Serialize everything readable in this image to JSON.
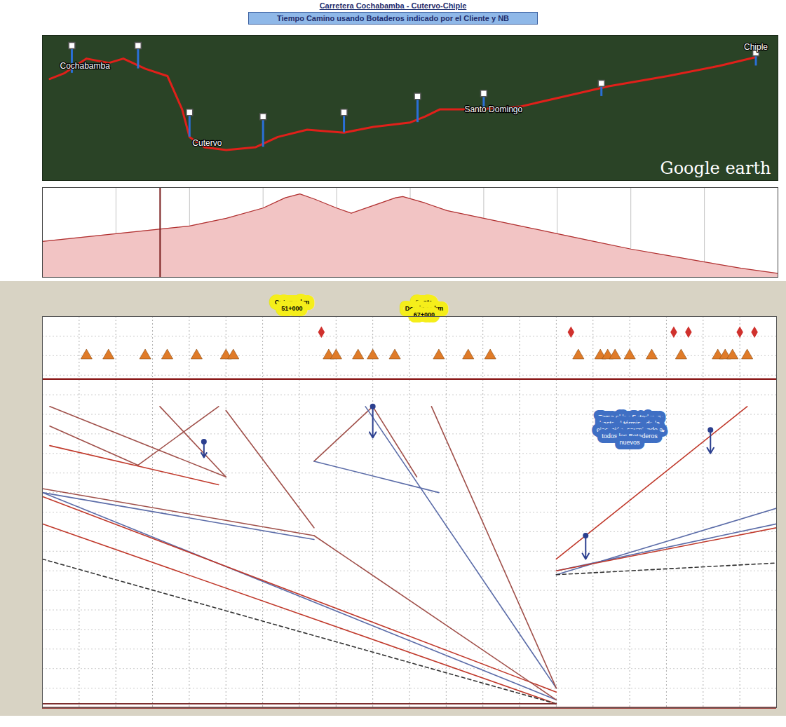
{
  "chart_data": [
    {
      "type": "map",
      "title": "Carretera Cochabamba - Cutervo-Chiple",
      "subtitle": "Tiempo Camino usando Botaderos indicado por el Cliente y NB",
      "xlim": [
        0,
        100
      ],
      "ylim": [
        0,
        100
      ],
      "tick_labels": false,
      "color": "#e0201a",
      "route": {
        "x": [
          1,
          3,
          6,
          9,
          11,
          14,
          17,
          19,
          20,
          22,
          25,
          29,
          32,
          36,
          41,
          45,
          50,
          52,
          54,
          59,
          65,
          71,
          77,
          85,
          92,
          97
        ],
        "y": [
          70,
          74,
          84,
          81,
          84,
          77,
          72,
          49,
          30,
          23,
          21,
          23,
          30,
          35,
          33,
          37,
          40,
          44,
          49,
          49,
          51,
          58,
          65,
          72,
          79,
          85
        ]
      },
      "pins": {
        "color": "#2a6fd6",
        "x": [
          4,
          13,
          20,
          30,
          41,
          51,
          60,
          76,
          97
        ],
        "y_base": [
          74,
          77,
          30,
          23,
          33,
          40,
          49,
          58,
          79
        ],
        "y_top": [
          93,
          93,
          47,
          44,
          47,
          58,
          60,
          67,
          88
        ]
      },
      "places": [
        {
          "label": "Cochabamba",
          "x": 2,
          "y": 79
        },
        {
          "label": "Cutervo",
          "x": 20,
          "y": 26
        },
        {
          "label": "Santo Domingo",
          "x": 57,
          "y": 49
        },
        {
          "label": "Chiple",
          "x": 99,
          "y": 92
        }
      ],
      "credit": "Google earth"
    },
    {
      "type": "area",
      "x": [
        0,
        5,
        10,
        15,
        20,
        25,
        30,
        33,
        35,
        37,
        40,
        42,
        45,
        48,
        49,
        52,
        55,
        60,
        65,
        70,
        75,
        80,
        85,
        90,
        95,
        100
      ],
      "values": [
        1400,
        1550,
        1700,
        1850,
        2000,
        2300,
        2700,
        3100,
        3250,
        3050,
        2700,
        2500,
        2800,
        3100,
        3150,
        2900,
        2600,
        2300,
        2000,
        1700,
        1400,
        1100,
        850,
        600,
        350,
        150
      ],
      "xlim": [
        0,
        100
      ],
      "ylim": [
        0,
        3500
      ],
      "xticks": [
        0,
        10,
        20,
        30,
        40,
        50,
        60,
        70,
        80,
        90,
        100
      ],
      "grid": true,
      "tick_labels": false,
      "color": "#f2c4c4",
      "cursor": 16
    },
    {
      "type": "line",
      "xlim": [
        0,
        100
      ],
      "ylim": [
        0,
        100
      ],
      "xticks": [
        0,
        5,
        10,
        15,
        20,
        25,
        30,
        35,
        40,
        45,
        50,
        55,
        60,
        65,
        70,
        75,
        80,
        85,
        90,
        95,
        100
      ],
      "yticks": [
        0,
        5,
        10,
        15,
        20,
        25,
        30,
        35,
        40,
        45,
        50,
        55,
        60,
        65,
        70,
        75,
        80,
        85,
        90,
        95,
        100
      ],
      "grid": true,
      "tick_labels": false,
      "series": [
        {
          "color": "#a0504a",
          "values": [
            [
              1,
              23
            ],
            [
              25,
              41
            ]
          ]
        },
        {
          "color": "#a0504a",
          "values": [
            [
              1,
              28
            ],
            [
              13,
              38
            ]
          ]
        },
        {
          "color": "#c0392b",
          "values": [
            [
              1,
              33
            ],
            [
              24,
              43
            ]
          ]
        },
        {
          "color": "#a0504a",
          "values": [
            [
              16,
              23
            ],
            [
              25,
              41
            ]
          ]
        },
        {
          "color": "#a0504a",
          "values": [
            [
              24,
              23
            ],
            [
              13,
              38
            ]
          ]
        },
        {
          "color": "#a0504a",
          "values": [
            [
              37,
              37
            ],
            [
              45,
              23
            ],
            [
              51,
              41
            ]
          ]
        },
        {
          "color": "#5b6ca8",
          "values": [
            [
              37,
              37
            ],
            [
              54,
              45
            ]
          ]
        },
        {
          "color": "#a0504a",
          "values": [
            [
              0,
              44
            ],
            [
              37,
              56
            ]
          ]
        },
        {
          "color": "#5b6ca8",
          "values": [
            [
              0,
              45
            ],
            [
              37,
              57
            ]
          ]
        },
        {
          "color": "#a0504a",
          "values": [
            [
              25,
              24
            ],
            [
              37,
              54
            ]
          ]
        },
        {
          "color": "#c0392b",
          "values": [
            [
              0,
              53
            ],
            [
              70,
              99
            ]
          ]
        },
        {
          "color": "#5b6ca8",
          "values": [
            [
              0,
              45
            ],
            [
              70,
              98
            ]
          ]
        },
        {
          "color": "#c0392b",
          "values": [
            [
              0,
              46
            ],
            [
              70,
              96
            ]
          ]
        },
        {
          "color": "#5b6ca8",
          "values": [
            [
              44,
              23
            ],
            [
              70,
              95
            ]
          ]
        },
        {
          "color": "#a0504a",
          "values": [
            [
              53,
              23
            ],
            [
              70,
              95
            ]
          ]
        },
        {
          "color": "#a0504a",
          "values": [
            [
              37,
              56
            ],
            [
              70,
              98
            ]
          ]
        },
        {
          "color": "#c0392b",
          "values": [
            [
              70,
              62
            ],
            [
              96,
              23
            ]
          ]
        },
        {
          "color": "#5b6ca8",
          "values": [
            [
              70,
              66
            ],
            [
              100,
              49
            ]
          ]
        },
        {
          "color": "#5b6ca8",
          "values": [
            [
              70,
              65
            ],
            [
              100,
              53
            ]
          ]
        },
        {
          "color": "#c0392b",
          "values": [
            [
              70,
              65
            ],
            [
              100,
              54
            ]
          ]
        },
        {
          "color": "#333333",
          "line_style": "dashed",
          "values": [
            [
              0,
              62
            ],
            [
              70,
              99
            ]
          ]
        },
        {
          "color": "#333333",
          "line_style": "dashed",
          "values": [
            [
              70,
              66
            ],
            [
              100,
              63
            ]
          ]
        },
        {
          "color": "#7a2a2a",
          "values": [
            [
              0,
              99
            ],
            [
              70,
              99
            ]
          ]
        }
      ],
      "hlines": {
        "color": "#8b1a1a",
        "values": [
          16,
          100
        ]
      },
      "arrows": {
        "color": "#2b3f8f",
        "values": [
          [
            22,
            32,
            36
          ],
          [
            45,
            23,
            31
          ],
          [
            91,
            29,
            35
          ],
          [
            74,
            56,
            62
          ]
        ]
      },
      "botaderos": {
        "color": "#e07b28",
        "marker": "triangle",
        "y": 10,
        "x": [
          6,
          9,
          14,
          17,
          21,
          25,
          26,
          39,
          40,
          43,
          45,
          48,
          54,
          58,
          61,
          73,
          76,
          77,
          78,
          80,
          83,
          87,
          92,
          93,
          94,
          96
        ]
      },
      "hitos": {
        "color": "#d0312d",
        "marker": "diamond",
        "y": 4,
        "x": [
          38,
          72,
          86,
          88,
          95,
          97
        ]
      },
      "header_labels": [
        {
          "label": "Cutervo km 51+000",
          "x": 34
        },
        {
          "label": "Santo Domingo km 67+000",
          "x": 52
        }
      ],
      "annotations": [
        {
          "label": "Toma el los Botaderos hasta el término de la ejecución, asumiendo a todos los Botaderos nuevos",
          "x": 80,
          "y": 29
        }
      ]
    }
  ]
}
